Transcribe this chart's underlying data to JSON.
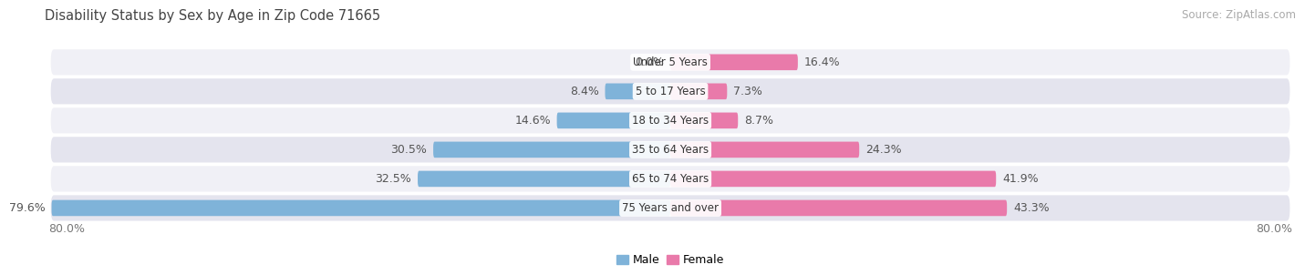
{
  "title": "Disability Status by Sex by Age in Zip Code 71665",
  "source": "Source: ZipAtlas.com",
  "categories": [
    "Under 5 Years",
    "5 to 17 Years",
    "18 to 34 Years",
    "35 to 64 Years",
    "65 to 74 Years",
    "75 Years and over"
  ],
  "male_values": [
    0.0,
    8.4,
    14.6,
    30.5,
    32.5,
    79.6
  ],
  "female_values": [
    16.4,
    7.3,
    8.7,
    24.3,
    41.9,
    43.3
  ],
  "male_color": "#7fb3d9",
  "female_color": "#e97aaa",
  "row_bg_light": "#f0f0f6",
  "row_bg_dark": "#e4e4ee",
  "axis_min": -80.0,
  "axis_max": 80.0,
  "bar_height": 0.55,
  "label_fontsize": 9.0,
  "title_fontsize": 10.5,
  "category_fontsize": 8.5,
  "legend_fontsize": 9,
  "source_fontsize": 8.5
}
